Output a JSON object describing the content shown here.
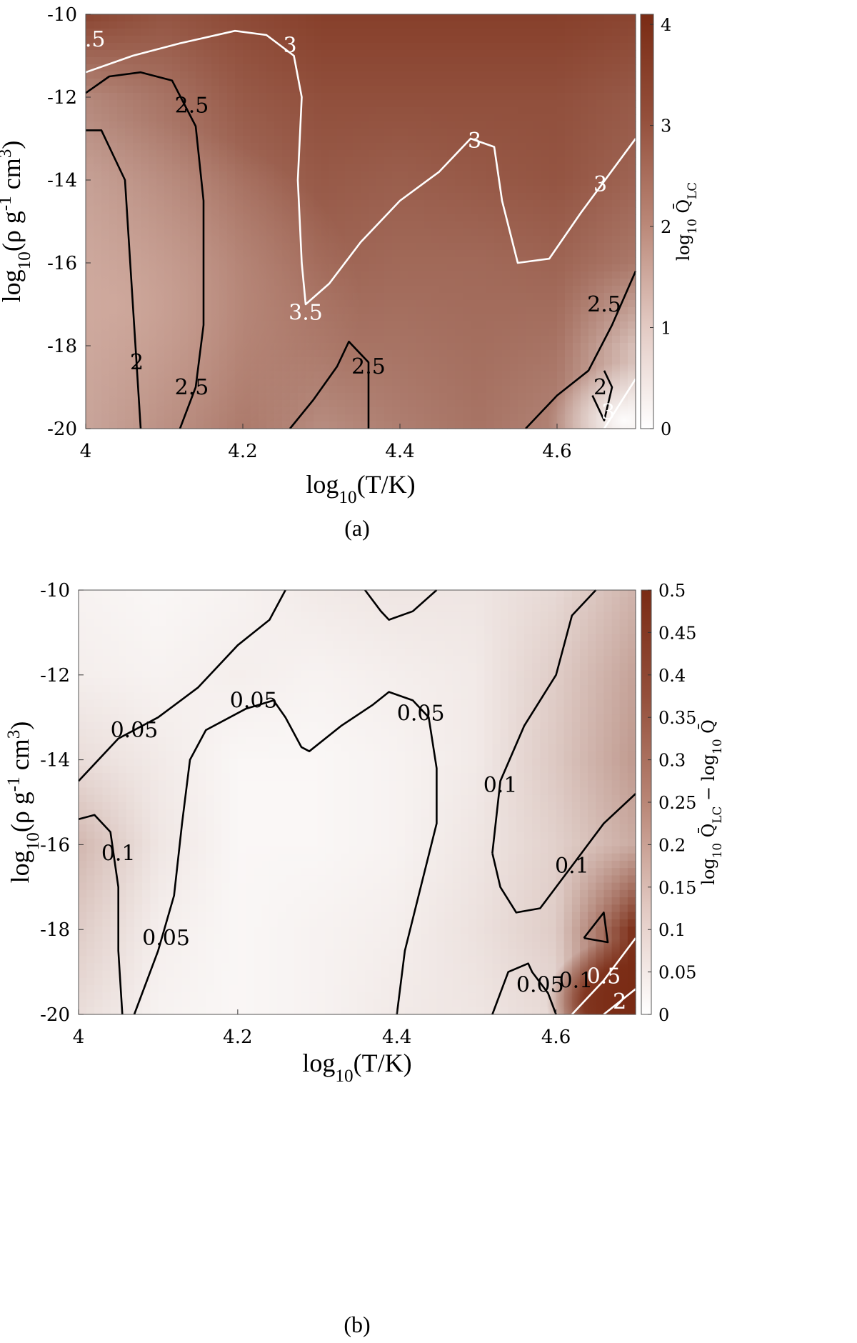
{
  "chart_data": [
    {
      "type": "heatmap",
      "panel_caption": "(a)",
      "xlabel": "log10(T/K)",
      "ylabel": "log10(ρ g^-1 cm^3)",
      "xlim": [
        4.0,
        4.7
      ],
      "ylim": [
        -20,
        -10
      ],
      "x_tick_labels": [
        "4",
        "4.2",
        "4.4",
        "4.6"
      ],
      "y_tick_labels": [
        "-10",
        "-12",
        "-14",
        "-16",
        "-18",
        "-20"
      ],
      "colorbar": {
        "label": "log10 Q̄LC",
        "range": [
          0,
          4.1
        ],
        "tick_labels": [
          "0",
          "1",
          "2",
          "3",
          "4"
        ],
        "low_color": "#ffffff",
        "high_color": "#7a2b14"
      },
      "field_samples": {
        "x": [
          4.0,
          4.1,
          4.2,
          4.3,
          4.4,
          4.5,
          4.6,
          4.7
        ],
        "y": [
          -10,
          -12,
          -14,
          -16,
          -18,
          -20
        ],
        "z": [
          [
            3.6,
            3.3,
            3.5,
            3.7,
            3.7,
            3.7,
            3.7,
            3.6
          ],
          [
            2.3,
            2.7,
            3.2,
            3.4,
            3.4,
            3.4,
            3.4,
            3.2
          ],
          [
            1.9,
            2.4,
            2.9,
            3.2,
            3.1,
            3.2,
            3.3,
            3.0
          ],
          [
            1.8,
            2.3,
            2.8,
            3.0,
            2.9,
            2.9,
            3.0,
            2.6
          ],
          [
            1.8,
            2.3,
            2.8,
            2.7,
            2.7,
            2.8,
            2.7,
            1.2
          ],
          [
            1.8,
            2.3,
            2.7,
            2.2,
            2.5,
            2.7,
            2.4,
            0.9
          ]
        ]
      },
      "contour_lines": [
        {
          "level": "2",
          "color": "#000000",
          "points": [
            [
              4.0,
              -12.8
            ],
            [
              4.02,
              -12.8
            ],
            [
              4.05,
              -14.0
            ],
            [
              4.06,
              -17.0
            ],
            [
              4.065,
              -18.5
            ],
            [
              4.07,
              -20.0
            ]
          ]
        },
        {
          "level": "2.5",
          "color": "#000000",
          "points": [
            [
              4.0,
              -11.9
            ],
            [
              4.03,
              -11.5
            ],
            [
              4.07,
              -11.4
            ],
            [
              4.11,
              -11.6
            ],
            [
              4.14,
              -12.7
            ],
            [
              4.15,
              -14.5
            ],
            [
              4.15,
              -17.5
            ],
            [
              4.14,
              -19.0
            ],
            [
              4.12,
              -20.0
            ]
          ]
        },
        {
          "level": "3",
          "color": "#ffffff",
          "points": [
            [
              4.0,
              -11.4
            ],
            [
              4.06,
              -11.0
            ],
            [
              4.12,
              -10.7
            ],
            [
              4.19,
              -10.4
            ],
            [
              4.23,
              -10.5
            ],
            [
              4.265,
              -11.0
            ],
            [
              4.275,
              -12.0
            ],
            [
              4.27,
              -14.0
            ],
            [
              4.275,
              -16.0
            ],
            [
              4.28,
              -17.0
            ],
            [
              4.31,
              -16.5
            ],
            [
              4.35,
              -15.5
            ],
            [
              4.4,
              -14.5
            ],
            [
              4.45,
              -13.8
            ],
            [
              4.49,
              -13.0
            ],
            [
              4.52,
              -13.2
            ],
            [
              4.53,
              -14.5
            ],
            [
              4.55,
              -16.0
            ],
            [
              4.59,
              -15.9
            ],
            [
              4.63,
              -14.8
            ],
            [
              4.7,
              -13.0
            ]
          ]
        },
        {
          "level": "2.5",
          "color": "#000000",
          "points": [
            [
              4.26,
              -20.0
            ],
            [
              4.29,
              -19.3
            ],
            [
              4.32,
              -18.5
            ],
            [
              4.335,
              -17.9
            ],
            [
              4.36,
              -18.4
            ],
            [
              4.36,
              -20.0
            ]
          ]
        },
        {
          "level": "2.5",
          "color": "#000000",
          "points": [
            [
              4.56,
              -20.0
            ],
            [
              4.6,
              -19.2
            ],
            [
              4.64,
              -18.6
            ],
            [
              4.67,
              -17.5
            ],
            [
              4.7,
              -16.2
            ]
          ]
        },
        {
          "level": "2",
          "color": "#000000",
          "points": [
            [
              4.645,
              -19.2
            ],
            [
              4.66,
              -19.8
            ],
            [
              4.67,
              -19.0
            ],
            [
              4.66,
              -18.6
            ]
          ]
        },
        {
          "level": "3",
          "color": "#ffffff",
          "points": [
            [
              4.66,
              -20.0
            ],
            [
              4.7,
              -18.8
            ]
          ]
        }
      ],
      "contour_labels": [
        {
          "text": "3",
          "x": 4.26,
          "y": -10.75,
          "color": "#ffffff"
        },
        {
          "text": "2.5",
          "x": 4.135,
          "y": -12.2,
          "color": "#000000"
        },
        {
          "text": "3",
          "x": 4.495,
          "y": -13.05,
          "color": "#ffffff"
        },
        {
          "text": "3",
          "x": 4.655,
          "y": -14.1,
          "color": "#ffffff"
        },
        {
          "text": "2.5",
          "x": 4.66,
          "y": -17.0,
          "color": "#000000"
        },
        {
          "text": "2",
          "x": 4.065,
          "y": -18.4,
          "color": "#000000"
        },
        {
          "text": "2.5",
          "x": 4.135,
          "y": -19.0,
          "color": "#000000"
        },
        {
          "text": "2.5",
          "x": 4.36,
          "y": -18.5,
          "color": "#000000"
        },
        {
          "text": "2",
          "x": 4.655,
          "y": -19.0,
          "color": "#000000"
        },
        {
          "text": "3",
          "x": 4.665,
          "y": -19.6,
          "color": "#ffffff"
        },
        {
          "text": ".5",
          "x": 4.012,
          "y": -10.6,
          "color": "#ffffff"
        },
        {
          "text": "3.5",
          "x": 4.28,
          "y": -17.2,
          "color": "#ffffff"
        }
      ]
    },
    {
      "type": "heatmap",
      "panel_caption": "(b)",
      "xlabel": "log10(T/K)",
      "ylabel": "log10(ρ g^-1 cm^3)",
      "xlim": [
        4.0,
        4.7
      ],
      "ylim": [
        -20,
        -10
      ],
      "x_tick_labels": [
        "4",
        "4.2",
        "4.4",
        "4.6"
      ],
      "y_tick_labels": [
        "-10",
        "-12",
        "-14",
        "-16",
        "-18",
        "-20"
      ],
      "colorbar": {
        "label": "log10 Q̄LC − log10 Q̄",
        "range": [
          0,
          0.5
        ],
        "tick_labels": [
          "0",
          "0.05",
          "0.1",
          "0.15",
          "0.2",
          "0.25",
          "0.3",
          "0.35",
          "0.4",
          "0.45",
          "0.5"
        ],
        "low_color": "#ffffff",
        "high_color": "#7a2b14"
      },
      "field_samples": {
        "x": [
          4.0,
          4.1,
          4.2,
          4.3,
          4.4,
          4.5,
          4.6,
          4.7
        ],
        "y": [
          -10,
          -12,
          -14,
          -16,
          -18,
          -20
        ],
        "z": [
          [
            0.03,
            0.02,
            0.03,
            0.05,
            0.06,
            0.06,
            0.09,
            0.18
          ],
          [
            0.04,
            0.03,
            0.04,
            0.03,
            0.04,
            0.05,
            0.12,
            0.22
          ],
          [
            0.08,
            0.05,
            0.02,
            0.02,
            0.03,
            0.05,
            0.13,
            0.24
          ],
          [
            0.17,
            0.06,
            0.02,
            0.02,
            0.03,
            0.06,
            0.11,
            0.2
          ],
          [
            0.12,
            0.04,
            0.02,
            0.03,
            0.04,
            0.07,
            0.12,
            0.5
          ],
          [
            0.08,
            0.03,
            0.02,
            0.03,
            0.05,
            0.06,
            0.09,
            0.5
          ]
        ]
      },
      "contour_lines": [
        {
          "level": "0.05",
          "color": "#000000",
          "points": [
            [
              4.0,
              -14.5
            ],
            [
              4.05,
              -13.5
            ],
            [
              4.1,
              -13.0
            ],
            [
              4.15,
              -12.3
            ],
            [
              4.2,
              -11.3
            ],
            [
              4.24,
              -10.7
            ],
            [
              4.26,
              -10.0
            ]
          ]
        },
        {
          "level": "0.05",
          "color": "#000000",
          "points": [
            [
              4.07,
              -20.0
            ],
            [
              4.1,
              -18.5
            ],
            [
              4.12,
              -17.2
            ],
            [
              4.13,
              -15.5
            ],
            [
              4.14,
              -14.0
            ],
            [
              4.16,
              -13.3
            ],
            [
              4.21,
              -12.8
            ],
            [
              4.245,
              -12.6
            ],
            [
              4.26,
              -13.0
            ],
            [
              4.28,
              -13.7
            ],
            [
              4.29,
              -13.8
            ],
            [
              4.33,
              -13.2
            ],
            [
              4.37,
              -12.7
            ],
            [
              4.39,
              -12.4
            ],
            [
              4.42,
              -12.6
            ],
            [
              4.44,
              -13.0
            ],
            [
              4.45,
              -14.2
            ],
            [
              4.45,
              -15.5
            ],
            [
              4.43,
              -17.0
            ],
            [
              4.41,
              -18.5
            ],
            [
              4.4,
              -20.0
            ]
          ]
        },
        {
          "level": "0.05",
          "color": "#000000",
          "points": [
            [
              4.36,
              -10.0
            ],
            [
              4.38,
              -10.5
            ],
            [
              4.39,
              -10.7
            ],
            [
              4.42,
              -10.5
            ],
            [
              4.45,
              -10.0
            ]
          ]
        },
        {
          "level": "0.1",
          "color": "#000000",
          "points": [
            [
              4.0,
              -15.4
            ],
            [
              4.02,
              -15.3
            ],
            [
              4.04,
              -15.7
            ],
            [
              4.05,
              -17.0
            ],
            [
              4.05,
              -18.5
            ],
            [
              4.055,
              -20.0
            ]
          ]
        },
        {
          "level": "0.1",
          "color": "#000000",
          "points": [
            [
              4.52,
              -20.0
            ],
            [
              4.54,
              -19.0
            ],
            [
              4.565,
              -18.8
            ],
            [
              4.57,
              -19.0
            ],
            [
              4.59,
              -19.5
            ],
            [
              4.6,
              -20.0
            ]
          ]
        },
        {
          "level": "0.1",
          "color": "#000000",
          "points": [
            [
              4.52,
              -16.2
            ],
            [
              4.53,
              -14.5
            ],
            [
              4.56,
              -13.2
            ],
            [
              4.6,
              -12.0
            ],
            [
              4.62,
              -10.6
            ],
            [
              4.65,
              -10.0
            ]
          ]
        },
        {
          "level": "0.1",
          "color": "#000000",
          "points": [
            [
              4.52,
              -16.2
            ],
            [
              4.53,
              -17.0
            ],
            [
              4.55,
              -17.6
            ],
            [
              4.58,
              -17.5
            ],
            [
              4.62,
              -16.5
            ],
            [
              4.66,
              -15.5
            ],
            [
              4.7,
              -14.8
            ]
          ]
        },
        {
          "level": "0.1",
          "color": "#000000",
          "points": [
            [
              4.635,
              -18.2
            ],
            [
              4.66,
              -17.6
            ],
            [
              4.665,
              -18.3
            ],
            [
              4.635,
              -18.2
            ]
          ]
        },
        {
          "level": "0.5",
          "color": "#ffffff",
          "points": [
            [
              4.62,
              -20.0
            ],
            [
              4.66,
              -19.2
            ],
            [
              4.7,
              -18.2
            ]
          ]
        },
        {
          "level": "2",
          "color": "#ffffff",
          "points": [
            [
              4.66,
              -20.0
            ],
            [
              4.7,
              -19.4
            ]
          ]
        }
      ],
      "contour_labels": [
        {
          "text": "0.05",
          "x": 4.07,
          "y": -13.3,
          "color": "#000000"
        },
        {
          "text": "0.05",
          "x": 4.22,
          "y": -12.6,
          "color": "#000000"
        },
        {
          "text": "0.05",
          "x": 4.43,
          "y": -12.9,
          "color": "#000000"
        },
        {
          "text": "0.05",
          "x": 4.11,
          "y": -18.2,
          "color": "#000000"
        },
        {
          "text": "0.1",
          "x": 4.05,
          "y": -16.2,
          "color": "#000000"
        },
        {
          "text": "0.1",
          "x": 4.53,
          "y": -14.6,
          "color": "#000000"
        },
        {
          "text": "0.1",
          "x": 4.62,
          "y": -16.5,
          "color": "#000000"
        },
        {
          "text": "0.05",
          "x": 4.58,
          "y": -19.3,
          "color": "#000000"
        },
        {
          "text": "0.1",
          "x": 4.625,
          "y": -19.2,
          "color": "#000000"
        },
        {
          "text": "0.5",
          "x": 4.66,
          "y": -19.1,
          "color": "#ffffff"
        },
        {
          "text": "2",
          "x": 4.68,
          "y": -19.7,
          "color": "#ffffff"
        }
      ]
    }
  ]
}
